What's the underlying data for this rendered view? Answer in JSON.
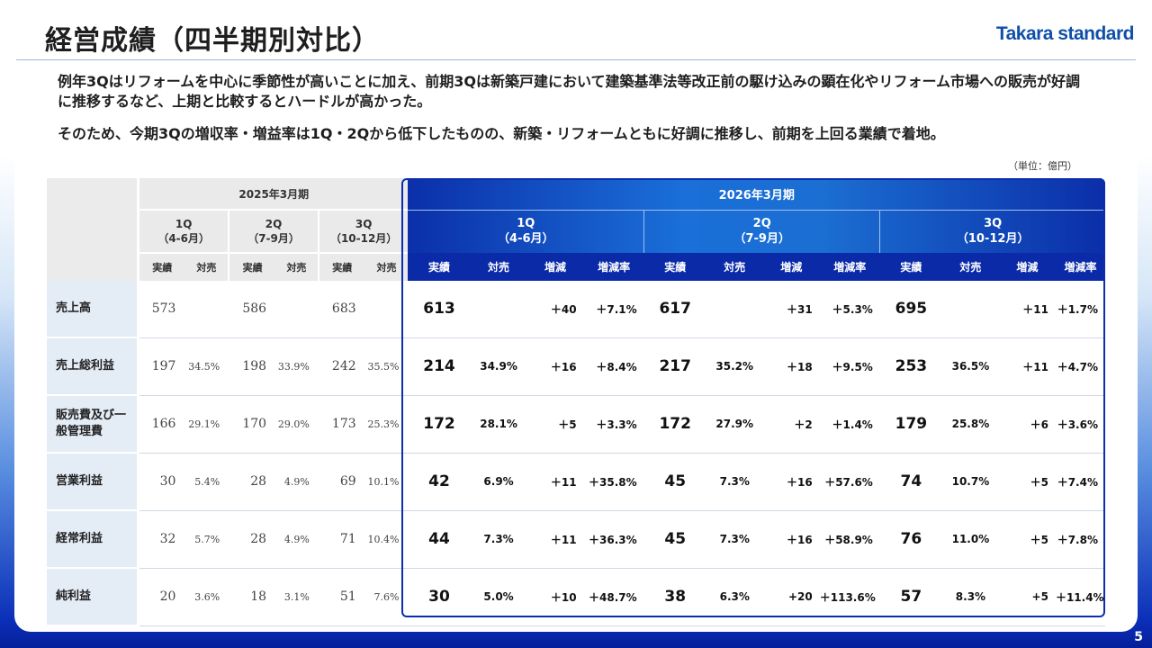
{
  "title": "経営成績（四半期別対比）",
  "logo": "Takara standard",
  "paragraph1": "例年3Qはリフォームを中心に季節性が高いことに加え、前期3Qは新築戸建において建築基準法等改正前の駆け込みの顕在化やリフォーム市場への販売が好調に推移するなど、上期と比較するとハードルが高かった。",
  "paragraph2": "そのため、今期3Qの増収率・増益率は1Q・2Qから低下したものの、新築・リフォームともに好調に推移し、前期を上回る業績で着地。",
  "unit": "（単位：億円）",
  "page_number": "5",
  "table": {
    "prev_year": "2025年3月期",
    "curr_year": "2026年3月期",
    "prev_quarters": [
      {
        "q": "1Q",
        "period": "（4-6月）"
      },
      {
        "q": "2Q",
        "period": "（7-9月）"
      },
      {
        "q": "3Q",
        "period": "（10-12月）"
      }
    ],
    "curr_quarters": [
      {
        "q": "1Q",
        "period": "（4-6月）"
      },
      {
        "q": "2Q",
        "period": "（7-9月）"
      },
      {
        "q": "3Q",
        "period": "（10-12月）"
      }
    ],
    "col_actual": "実績",
    "col_ratio": "対売",
    "col_change": "増減",
    "col_rate": "増減率",
    "rows": [
      {
        "label": "売上高",
        "prev": [
          [
            "573",
            ""
          ],
          [
            "586",
            ""
          ],
          [
            "683",
            ""
          ]
        ],
        "curr": [
          [
            "613",
            "",
            "＋40",
            "＋7.1%"
          ],
          [
            "617",
            "",
            "＋31",
            "＋5.3%"
          ],
          [
            "695",
            "",
            "＋11",
            "＋1.7%"
          ]
        ]
      },
      {
        "label": "売上総利益",
        "prev": [
          [
            "197",
            "34.5%"
          ],
          [
            "198",
            "33.9%"
          ],
          [
            "242",
            "35.5%"
          ]
        ],
        "curr": [
          [
            "214",
            "34.9%",
            "＋16",
            "＋8.4%"
          ],
          [
            "217",
            "35.2%",
            "＋18",
            "＋9.5%"
          ],
          [
            "253",
            "36.5%",
            "＋11",
            "＋4.7%"
          ]
        ]
      },
      {
        "label": "販売費及び一般管理費",
        "prev": [
          [
            "166",
            "29.1%"
          ],
          [
            "170",
            "29.0%"
          ],
          [
            "173",
            "25.3%"
          ]
        ],
        "curr": [
          [
            "172",
            "28.1%",
            "＋5",
            "＋3.3%"
          ],
          [
            "172",
            "27.9%",
            "＋2",
            "＋1.4%"
          ],
          [
            "179",
            "25.8%",
            "＋6",
            "＋3.6%"
          ]
        ]
      },
      {
        "label": "営業利益",
        "prev": [
          [
            "30",
            "5.4%"
          ],
          [
            "28",
            "4.9%"
          ],
          [
            "69",
            "10.1%"
          ]
        ],
        "curr": [
          [
            "42",
            "6.9%",
            "＋11",
            "＋35.8%"
          ],
          [
            "45",
            "7.3%",
            "＋16",
            "＋57.6%"
          ],
          [
            "74",
            "10.7%",
            "＋5",
            "＋7.4%"
          ]
        ]
      },
      {
        "label": "経常利益",
        "prev": [
          [
            "32",
            "5.7%"
          ],
          [
            "28",
            "4.9%"
          ],
          [
            "71",
            "10.4%"
          ]
        ],
        "curr": [
          [
            "44",
            "7.3%",
            "＋11",
            "＋36.3%"
          ],
          [
            "45",
            "7.3%",
            "＋16",
            "＋58.9%"
          ],
          [
            "76",
            "11.0%",
            "＋5",
            "＋7.8%"
          ]
        ]
      },
      {
        "label": "純利益",
        "prev": [
          [
            "20",
            "3.6%"
          ],
          [
            "18",
            "3.1%"
          ],
          [
            "51",
            "7.6%"
          ]
        ],
        "curr": [
          [
            "30",
            "5.0%",
            "＋10",
            "＋48.7%"
          ],
          [
            "38",
            "6.3%",
            "+20",
            "＋113.6%"
          ],
          [
            "57",
            "8.3%",
            "+5",
            "＋11.4%"
          ]
        ]
      }
    ]
  }
}
